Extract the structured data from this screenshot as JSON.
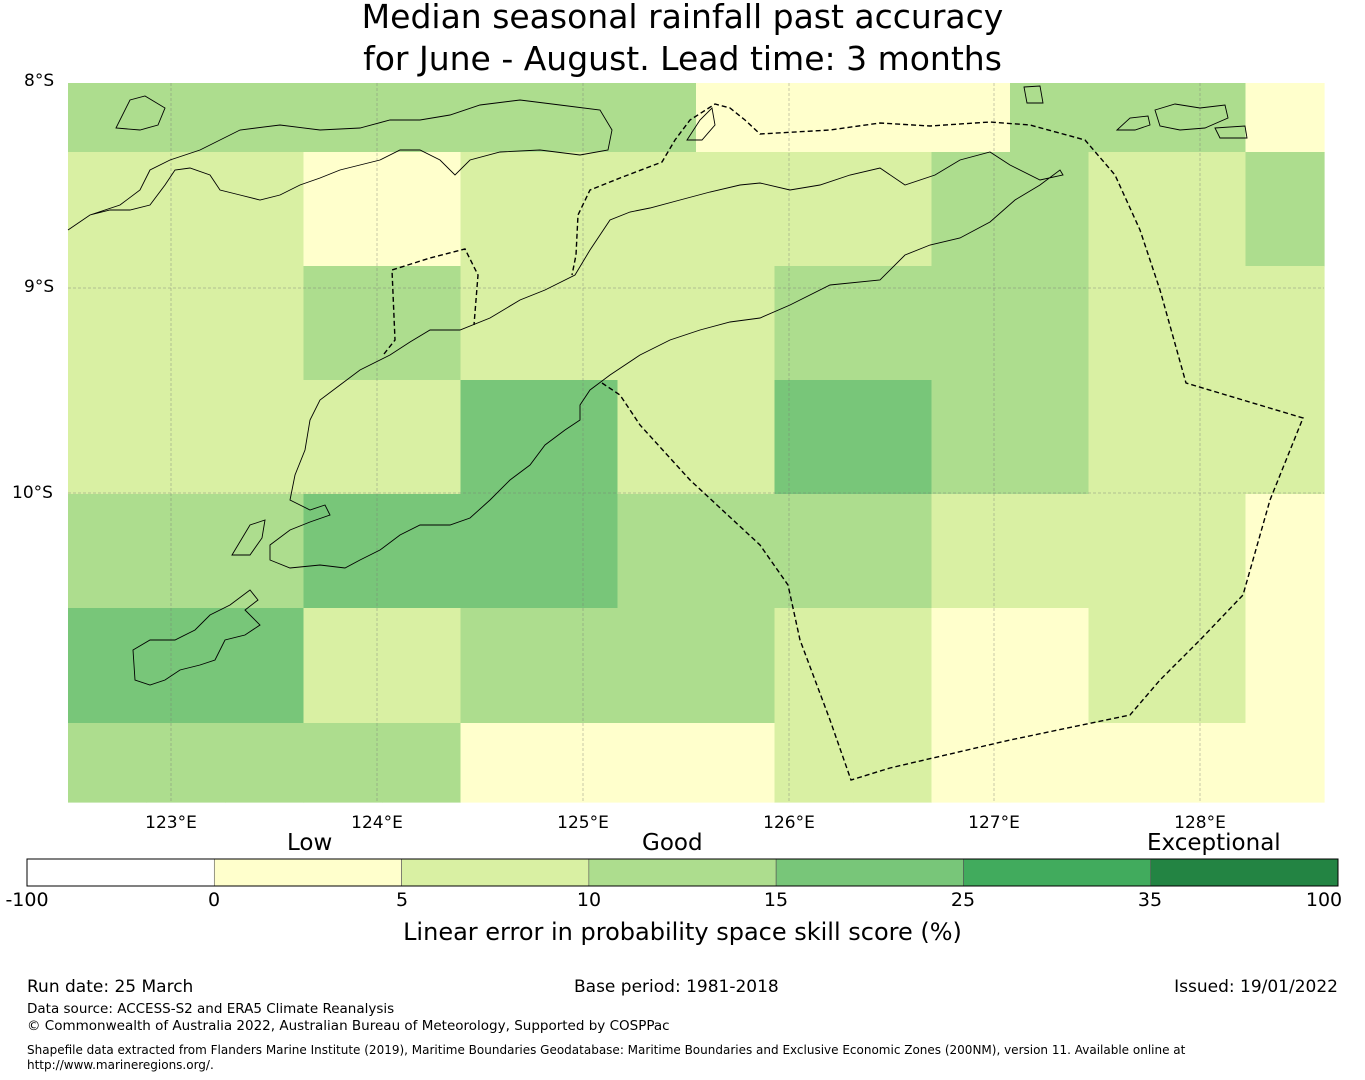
{
  "title": {
    "line1": "Median seasonal rainfall past accuracy",
    "line2": "for June - August. Lead time: 3 months"
  },
  "map": {
    "lat_labels": [
      "8°S",
      "9°S",
      "10°S"
    ],
    "lon_labels": [
      "123°E",
      "124°E",
      "125°E",
      "126°E",
      "127°E",
      "128°E"
    ],
    "score_grid_rows_north_to_south": [
      [
        "10-15",
        "10-15",
        "10-15",
        "10-15",
        "10-15",
        "10-15",
        "10-15",
        "10-15",
        "0-5",
        "0-5",
        "0-5",
        "0-5",
        "10-15",
        "10-15",
        "10-15",
        "0-5"
      ],
      [
        "5-10",
        "5-10",
        "5-10",
        "0-5",
        "0-5",
        "5-10",
        "5-10",
        "5-10",
        "5-10",
        "5-10",
        "5-10",
        "10-15",
        "10-15",
        "5-10",
        "5-10",
        "10-15"
      ],
      [
        "5-10",
        "5-10",
        "5-10",
        "10-15",
        "10-15",
        "5-10",
        "5-10",
        "5-10",
        "5-10",
        "10-15",
        "10-15",
        "10-15",
        "10-15",
        "5-10",
        "5-10",
        "5-10"
      ],
      [
        "5-10",
        "5-10",
        "5-10",
        "5-10",
        "5-10",
        "15-25",
        "15-25",
        "5-10",
        "5-10",
        "15-25",
        "15-25",
        "10-15",
        "10-15",
        "5-10",
        "5-10",
        "5-10"
      ],
      [
        "10-15",
        "10-15",
        "10-15",
        "15-25",
        "15-25",
        "15-25",
        "15-25",
        "10-15",
        "10-15",
        "10-15",
        "10-15",
        "5-10",
        "5-10",
        "5-10",
        "5-10",
        "0-5"
      ],
      [
        "15-25",
        "15-25",
        "15-25",
        "5-10",
        "5-10",
        "10-15",
        "10-15",
        "10-15",
        "10-15",
        "5-10",
        "5-10",
        "0-5",
        "0-5",
        "5-10",
        "5-10",
        "0-5"
      ],
      [
        "10-15",
        "10-15",
        "10-15",
        "10-15",
        "10-15",
        "0-5",
        "0-5",
        "0-5",
        "0-5",
        "5-10",
        "5-10",
        "0-5",
        "0-5",
        "0-5",
        "0-5",
        "0-5"
      ]
    ],
    "colors": {
      "0-5": "#ffffcc",
      "5-10": "#d9f0a3",
      "10-15": "#addd8e",
      "15-25": "#78c679",
      "25-35": "#41ab5d",
      "35-100": "#238443",
      "-100-0": "#ffffff"
    }
  },
  "colorbar": {
    "categories": [
      "Low",
      "Good",
      "Exceptional"
    ],
    "ticks": [
      "-100",
      "0",
      "5",
      "10",
      "15",
      "25",
      "35",
      "100"
    ],
    "segment_colors": [
      "#ffffff",
      "#ffffcc",
      "#d9f0a3",
      "#addd8e",
      "#78c679",
      "#41ab5d",
      "#238443"
    ],
    "label": "Linear error in probability space skill score (%)"
  },
  "footer": {
    "run_date": "Run date: 25 March",
    "base_period": "Base period: 1981-2018",
    "issued": "Issued: 19/01/2022",
    "data_source": "Data source: ACCESS-S2 and ERA5 Climate Reanalysis",
    "copyright": "© Commonwealth of Australia 2022, Australian Bureau of Meteorology, Supported by COSPPac",
    "shapefile_line1": "Shapefile data extracted from Flanders Marine Institute (2019), Maritime Boundaries Geodatabase: Maritime Boundaries and Exclusive Economic Zones (200NM), version 11. Available online at",
    "shapefile_line2": "http://www.marineregions.org/."
  }
}
